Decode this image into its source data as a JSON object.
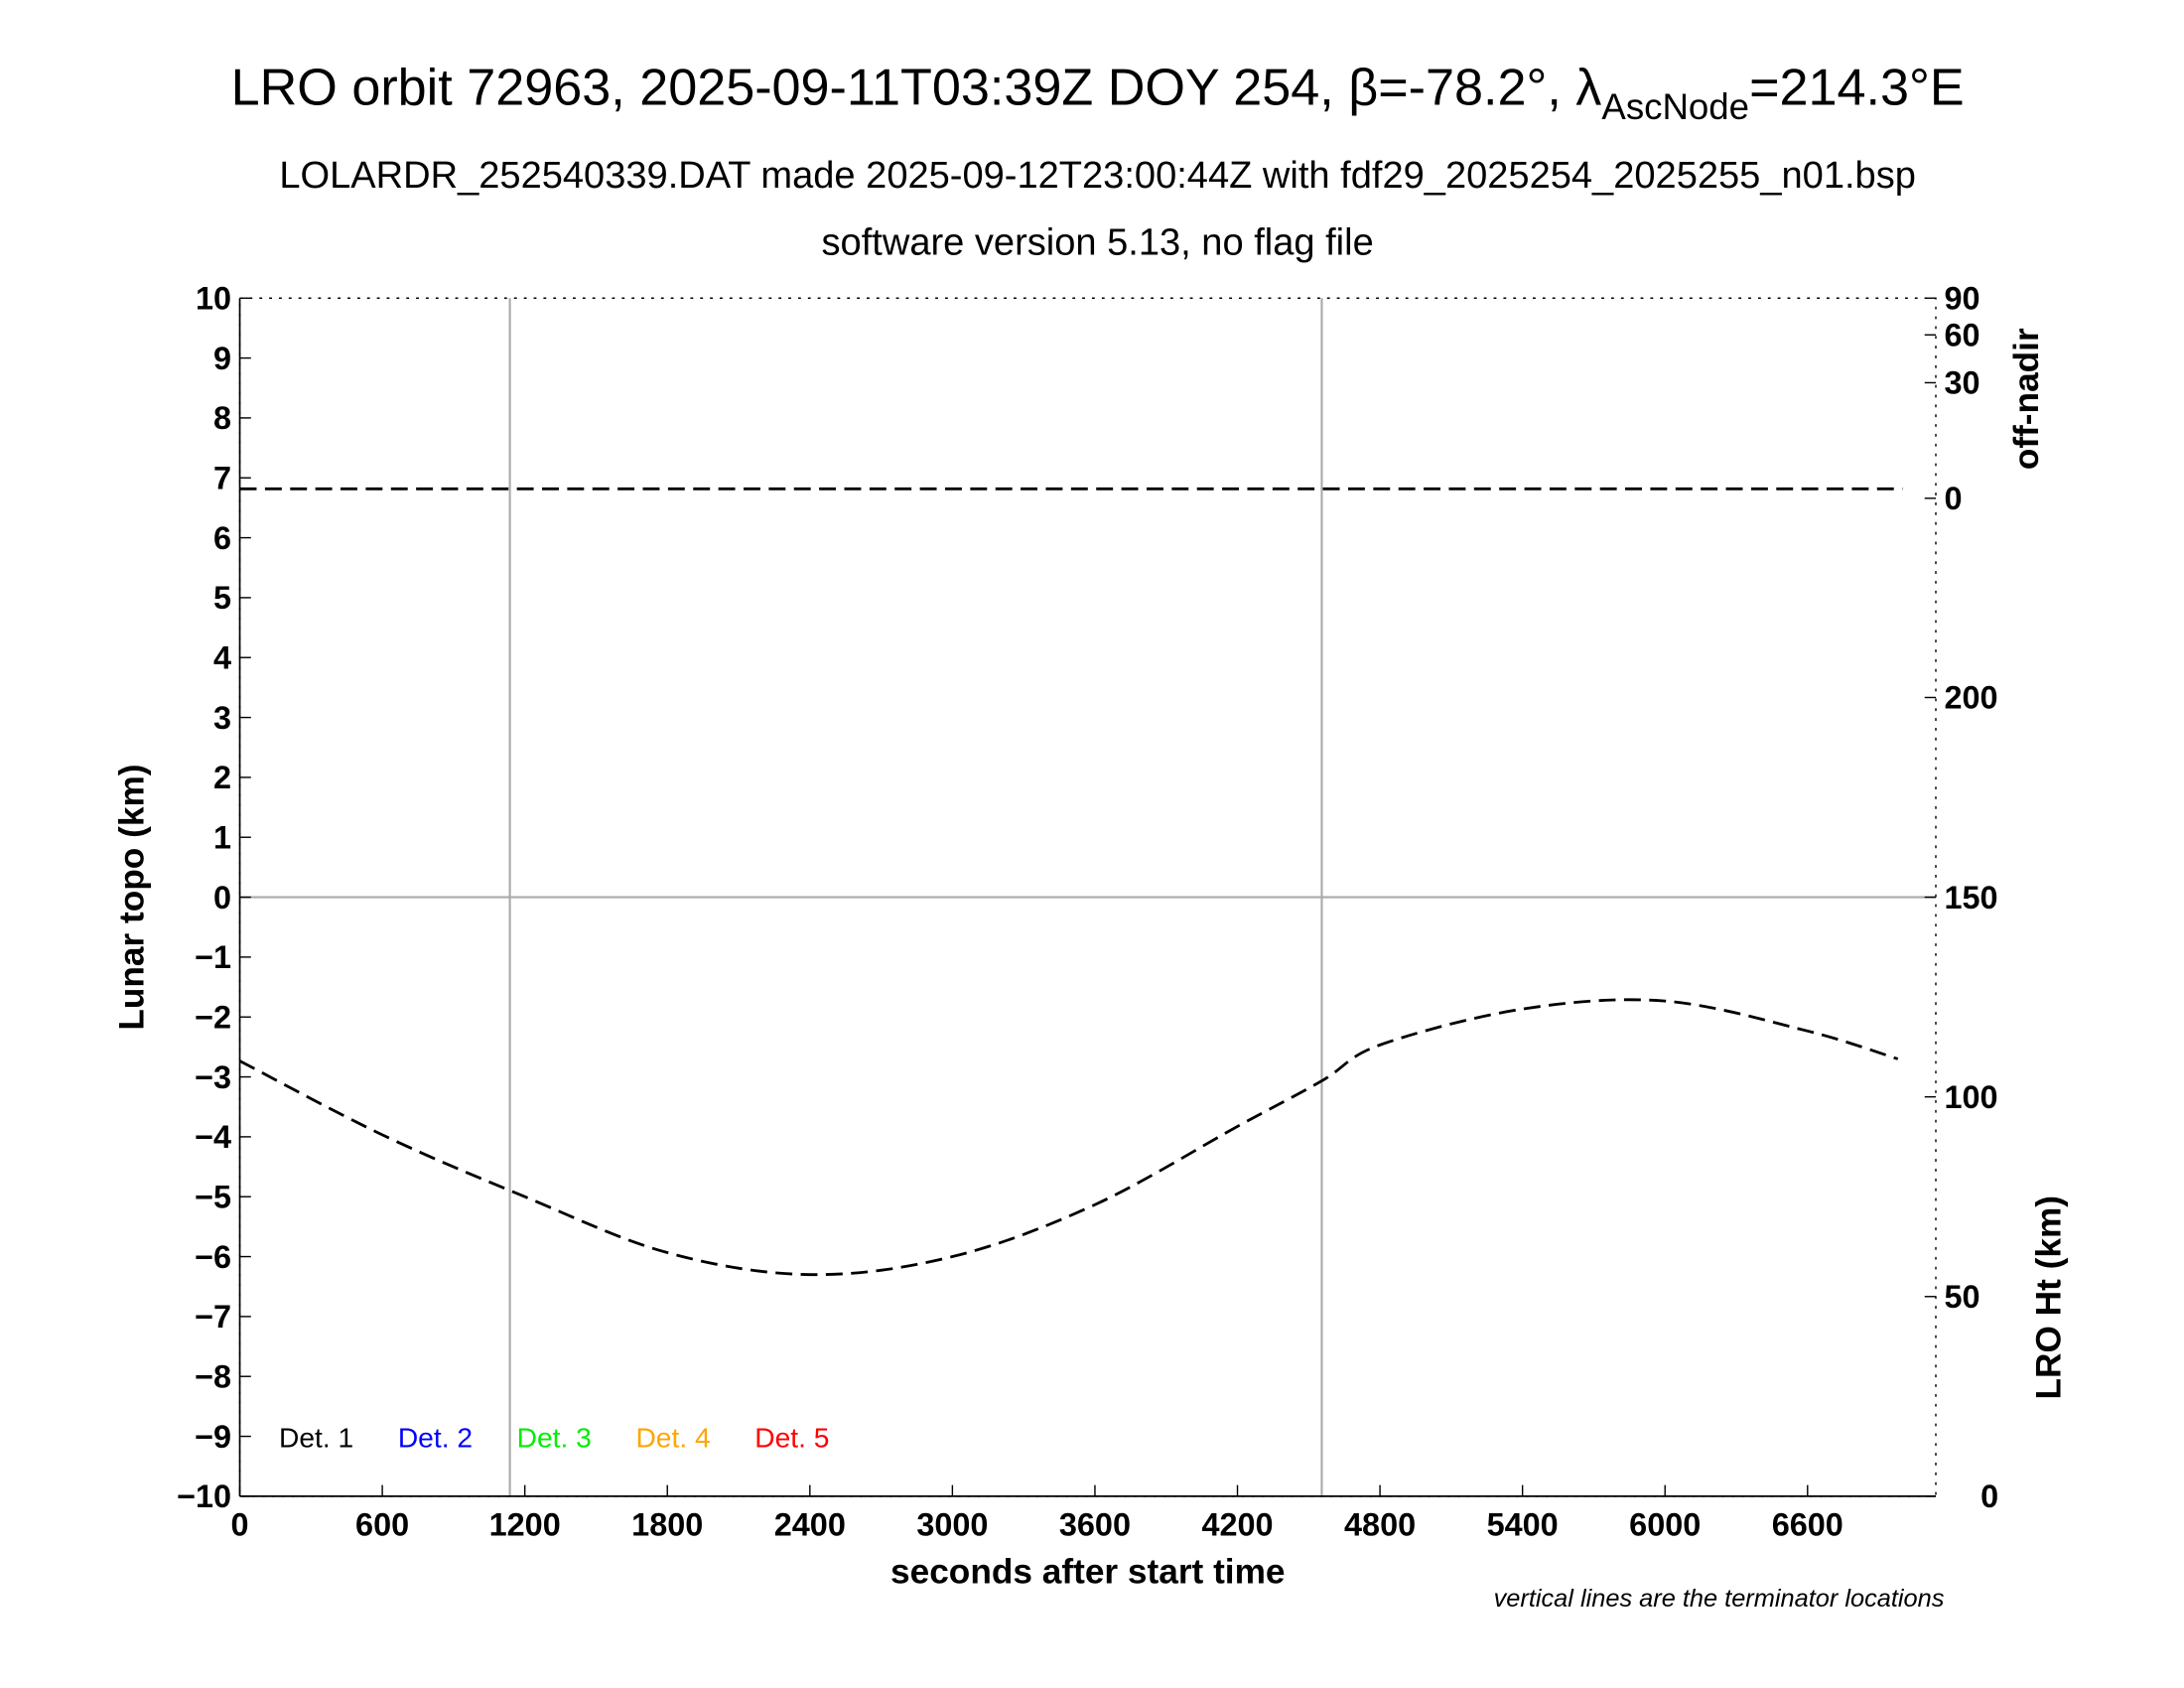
{
  "chart_data": {
    "type": "line",
    "title": {
      "main": "LRO orbit 72963, 2025-09-11T03:39Z DOY 254, β=-78.2°, λ",
      "sub": "AscNode",
      "tail": "=214.3°E"
    },
    "subtitle1": "LOLARDR_252540339.DAT made 2025-09-12T23:00:44Z with fdf29_2025254_2025255_n01.bsp",
    "subtitle2": "software version 5.13, no flag file",
    "xlabel": "seconds after start time",
    "ylabel_left": "Lunar topo (km)",
    "ylabel_right_top": "off-nadir",
    "ylabel_right_bottom": "LRO Ht (km)",
    "note": "vertical lines are the terminator locations",
    "xlim": [
      0,
      7140
    ],
    "ylim_left": [
      -10,
      10
    ],
    "x_ticks": [
      "0",
      "600",
      "1200",
      "1800",
      "2400",
      "3000",
      "3600",
      "4200",
      "4800",
      "5400",
      "6000",
      "6600"
    ],
    "y_ticks_left": [
      "10",
      "9",
      "8",
      "7",
      "6",
      "5",
      "4",
      "3",
      "2",
      "1",
      "0",
      "−1",
      "−2",
      "−3",
      "−4",
      "−5",
      "−6",
      "−7",
      "−8",
      "−9",
      "−10"
    ],
    "off_nadir_ticks": [
      "0",
      "30",
      "60",
      "90"
    ],
    "off_nadir_scale": "sqrt",
    "off_nadir_lim": [
      0,
      90
    ],
    "lro_ht_ticks": [
      "0",
      "50",
      "100",
      "150",
      "200"
    ],
    "lro_ht_lim": [
      0,
      300
    ],
    "terminators_s": [
      1137,
      4555
    ],
    "off_nadir_series": {
      "x": [
        0,
        7000
      ],
      "y": [
        0.2,
        0.2
      ]
    },
    "lro_ht_series": {
      "x": [
        0,
        600,
        1200,
        1800,
        2400,
        3000,
        3600,
        4200,
        4555,
        4800,
        5400,
        6000,
        6600,
        6980
      ],
      "y": [
        109,
        90.5,
        75,
        61,
        55.5,
        60,
        73,
        92.6,
        104,
        113,
        122,
        124,
        116.5,
        109.5
      ]
    },
    "legend": [
      {
        "label": "Det. 1",
        "color": "#000000"
      },
      {
        "label": "Det. 2",
        "color": "#0000ff"
      },
      {
        "label": "Det. 3",
        "color": "#00ee00"
      },
      {
        "label": "Det. 4",
        "color": "#ffa500"
      },
      {
        "label": "Det. 5",
        "color": "#ff0000"
      }
    ],
    "legend_placement": "bottom-left",
    "grid": false
  }
}
